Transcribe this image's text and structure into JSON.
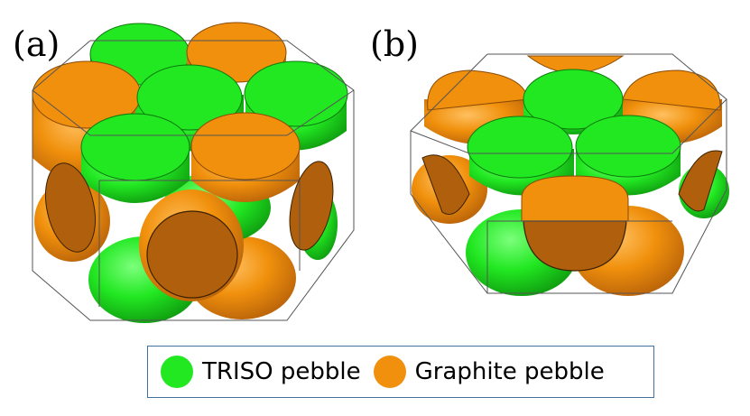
{
  "panels": [
    {
      "label": "(a)"
    },
    {
      "label": "(b)"
    }
  ],
  "legend": {
    "items": [
      {
        "label": "TRISO pebble",
        "color": "#22e822"
      },
      {
        "label": "Graphite pebble",
        "color": "#f08c10"
      }
    ]
  },
  "colors": {
    "triso_top": "#22e822",
    "triso_side": "#1cc01c",
    "graphite_top": "#f0900c",
    "graphite_side": "#e07c08",
    "cut_face": "#b0600c",
    "frame": "#555555"
  }
}
